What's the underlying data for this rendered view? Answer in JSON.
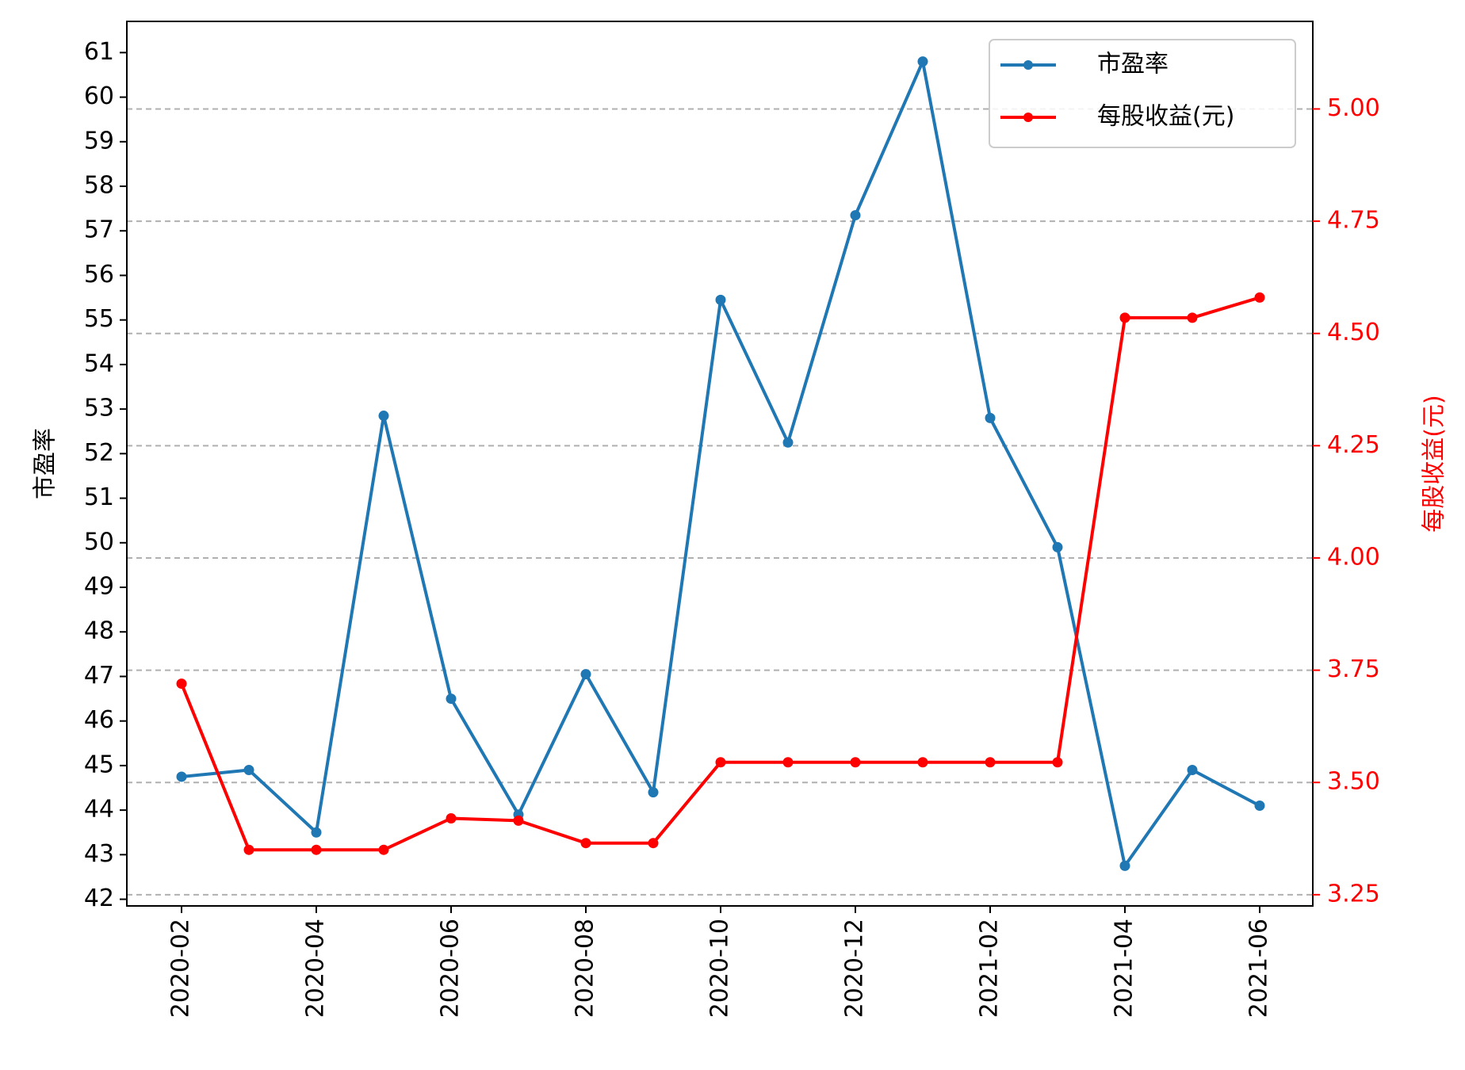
{
  "chart_data": {
    "type": "line",
    "x": [
      "2020-02",
      "2020-03",
      "2020-04",
      "2020-05",
      "2020-06",
      "2020-07",
      "2020-08",
      "2020-09",
      "2020-10",
      "2020-11",
      "2020-12",
      "2021-01",
      "2021-02",
      "2021-03",
      "2021-04",
      "2021-05",
      "2021-06"
    ],
    "x_tick_labels": [
      "2020-02",
      "2020-04",
      "2020-06",
      "2020-08",
      "2020-10",
      "2020-12",
      "2021-02",
      "2021-04",
      "2021-06"
    ],
    "series": [
      {
        "name": "市盈率",
        "axis": "left",
        "color": "#1f77b4",
        "values": [
          44.75,
          44.9,
          43.5,
          52.85,
          46.5,
          43.9,
          47.05,
          44.4,
          55.45,
          52.25,
          57.35,
          60.8,
          52.8,
          49.9,
          42.75,
          44.9,
          44.1
        ]
      },
      {
        "name": "每股收益(元)",
        "axis": "right",
        "color": "#ff0000",
        "values": [
          3.72,
          3.35,
          3.35,
          3.35,
          3.42,
          3.415,
          3.365,
          3.365,
          3.545,
          3.545,
          3.545,
          3.545,
          3.545,
          3.545,
          4.535,
          4.535,
          4.58
        ]
      }
    ],
    "ylabel": "市盈率",
    "ylabel_right": "每股收益(元)",
    "ylim": [
      41.85,
      61.7
    ],
    "ylim_right": [
      3.225,
      5.195
    ],
    "yticks": [
      42,
      43,
      44,
      45,
      46,
      47,
      48,
      49,
      50,
      51,
      52,
      53,
      54,
      55,
      56,
      57,
      58,
      59,
      60,
      61
    ],
    "yticks_right": [
      "3.25",
      "3.50",
      "3.75",
      "4.00",
      "4.25",
      "4.50",
      "4.75",
      "5.00"
    ],
    "grid": "horizontal dashed at right-axis ticks",
    "legend_placement": "upper right",
    "right_axis_color": "#ff0000"
  }
}
